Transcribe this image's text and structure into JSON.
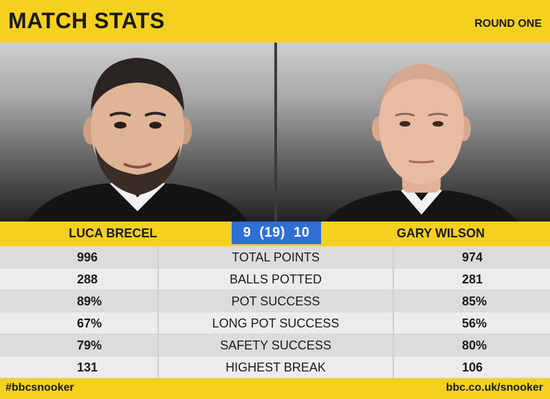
{
  "header": {
    "title": "MATCH STATS",
    "round": "ROUND ONE"
  },
  "players": {
    "left": {
      "name": "LUCA BRECEL"
    },
    "right": {
      "name": "GARY WILSON"
    }
  },
  "score": {
    "text": "9  (19)  10"
  },
  "stats": [
    {
      "left": "996",
      "label": "TOTAL POINTS",
      "right": "974"
    },
    {
      "left": "288",
      "label": "BALLS POTTED",
      "right": "281"
    },
    {
      "left": "89%",
      "label": "POT SUCCESS",
      "right": "85%"
    },
    {
      "left": "67%",
      "label": "LONG POT SUCCESS",
      "right": "56%"
    },
    {
      "left": "79%",
      "label": "SAFETY SUCCESS",
      "right": "80%"
    },
    {
      "left": "131",
      "label": "HIGHEST BREAK",
      "right": "106"
    }
  ],
  "footer": {
    "hashtag": "#bbcsnooker",
    "url": "bbc.co.uk/snooker"
  },
  "colors": {
    "brand_yellow": "#f4d020",
    "score_blue": "#2f6fd6"
  }
}
